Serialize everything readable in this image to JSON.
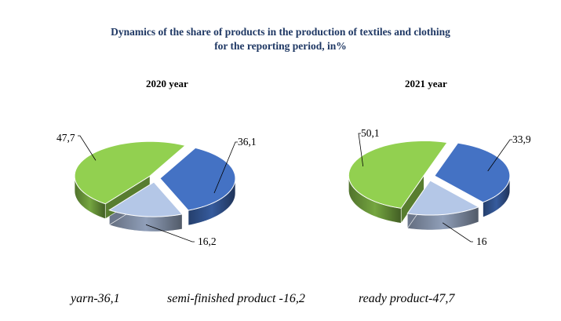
{
  "chart_data": [
    {
      "type": "pie",
      "title": "2020 year",
      "style": "3d-exploded",
      "slices": [
        {
          "name": "yarn",
          "value": 36.1,
          "label": "36,1",
          "color": "#4472c4"
        },
        {
          "name": "semi-finished product",
          "value": 16.2,
          "label": "16,2",
          "color": "#b4c7e7"
        },
        {
          "name": "ready product",
          "value": 47.7,
          "label": "47,7",
          "color": "#92d050"
        }
      ]
    },
    {
      "type": "pie",
      "title": "2021 year",
      "style": "3d-exploded",
      "slices": [
        {
          "name": "yarn",
          "value": 33.9,
          "label": "33,9",
          "color": "#4472c4"
        },
        {
          "name": "semi-finished product",
          "value": 16,
          "label": "16",
          "color": "#b4c7e7"
        },
        {
          "name": "ready product",
          "value": 50.1,
          "label": "50,1",
          "color": "#92d050"
        }
      ]
    }
  ],
  "header": {
    "title_line1": "Dynamics of the share of products in the production of textiles and clothing",
    "title_line2": "for the reporting period, in%"
  },
  "legend": [
    {
      "text": "yarn-36,1"
    },
    {
      "text": "semi-finished product -16,2"
    },
    {
      "text": "ready product-47,7"
    }
  ],
  "colors": {
    "title": "#1f3864",
    "yarn": "#4472c4",
    "semi_finished": "#b4c7e7",
    "ready": "#92d050"
  }
}
